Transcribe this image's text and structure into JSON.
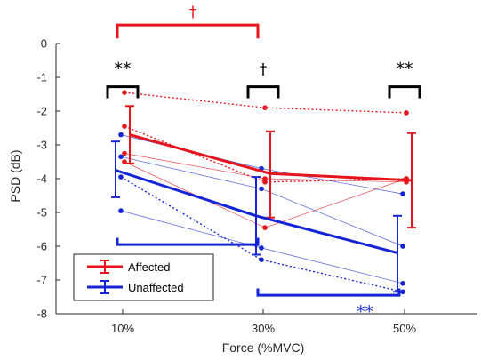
{
  "chart_data": {
    "type": "line",
    "xlabel": "Force (%MVC)",
    "ylabel": "PSD (dB)",
    "categories": [
      "10%",
      "30%",
      "50%"
    ],
    "ylim": [
      -8,
      0
    ],
    "yticks": [
      0,
      -1,
      -2,
      -3,
      -4,
      -5,
      -6,
      -7,
      -8
    ],
    "ytick_labels": [
      "0",
      "-1",
      "-2",
      "-3",
      "-4",
      "-5",
      "-6",
      "-7",
      "-8"
    ],
    "colors": {
      "affected": "#e8141b",
      "unaffected": "#1424d6"
    },
    "series": [
      {
        "name": "Affected",
        "color": "#e8141b",
        "mean": [
          -2.7,
          -3.85,
          -4.05
        ],
        "err_low": [
          -3.55,
          -5.15,
          -5.45
        ],
        "err_high": [
          -1.85,
          -2.6,
          -2.65
        ]
      },
      {
        "name": "Unaffected",
        "color": "#1424d6",
        "mean": [
          -3.75,
          -5.1,
          -6.2
        ],
        "err_low": [
          -4.55,
          -6.25,
          -7.35
        ],
        "err_high": [
          -2.9,
          -3.95,
          -5.1
        ]
      }
    ],
    "subjects": [
      {
        "group": "Affected",
        "values": [
          -1.45,
          -1.9,
          -2.05
        ],
        "style": "dotted"
      },
      {
        "group": "Affected",
        "values": [
          -2.45,
          -4.1,
          -4.0
        ],
        "style": "dotted"
      },
      {
        "group": "Affected",
        "values": [
          -3.25,
          -4.0,
          -4.1
        ],
        "style": "thin"
      },
      {
        "group": "Affected",
        "values": [
          -3.5,
          -5.45,
          -4.0
        ],
        "style": "thin"
      },
      {
        "group": "Unaffected",
        "values": [
          -2.7,
          -3.7,
          -4.45
        ],
        "style": "thin"
      },
      {
        "group": "Unaffected",
        "values": [
          -3.35,
          -4.3,
          -6.0
        ],
        "style": "thin"
      },
      {
        "group": "Unaffected",
        "values": [
          -3.95,
          -6.4,
          -7.35
        ],
        "style": "dotted"
      },
      {
        "group": "Unaffected",
        "values": [
          -4.95,
          -6.05,
          -7.1
        ],
        "style": "thin"
      }
    ],
    "significance": [
      {
        "symbol": "**",
        "color": "#000000",
        "bracket": "black",
        "at": "10%",
        "label_y": -0.75,
        "bracket_y": -1.28,
        "drop_y": -1.62
      },
      {
        "symbol": "†",
        "color": "#000000",
        "bracket": "black",
        "at": "30%",
        "label_y": -0.75,
        "bracket_y": -1.28,
        "drop_y": -1.62
      },
      {
        "symbol": "**",
        "color": "#000000",
        "bracket": "black",
        "at": "50%",
        "label_y": -0.75,
        "bracket_y": -1.28,
        "drop_y": -1.62
      },
      {
        "symbol": "†",
        "color": "#e8141b",
        "bracket": "red",
        "span": [
          "10%",
          "30%"
        ],
        "label_y": 0.95,
        "bracket_y": 0.55,
        "drop_y": 0.15
      },
      {
        "symbol": "*",
        "color": "#1424d6",
        "bracket": "blue",
        "span": [
          "10%",
          "30%"
        ],
        "label_y": -6.45,
        "bracket_y": -5.95,
        "drop_y": -5.75
      },
      {
        "symbol": "**",
        "color": "#1424d6",
        "bracket": "blue",
        "span": [
          "30%",
          "50%"
        ],
        "label_y": -7.95,
        "bracket_y": -7.45,
        "drop_y": -7.25
      }
    ],
    "legend": {
      "position": "bottom-left",
      "entries": [
        "Affected",
        "Unaffected"
      ]
    }
  }
}
